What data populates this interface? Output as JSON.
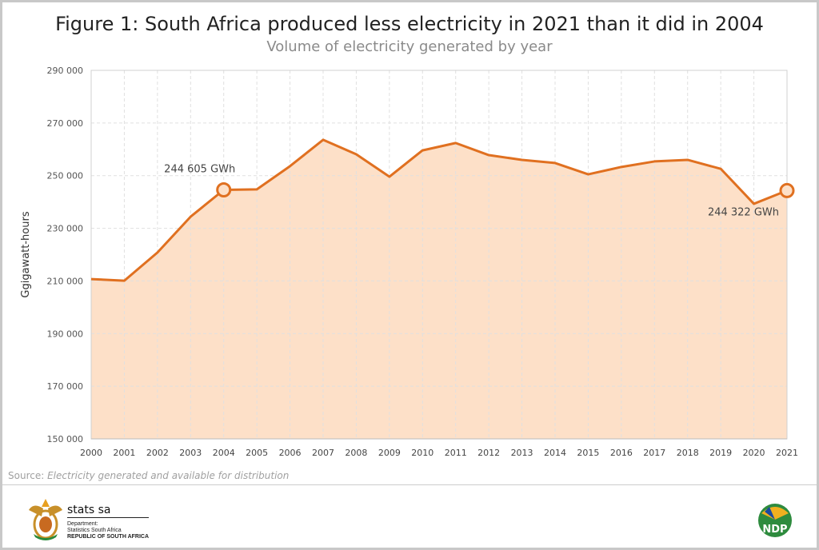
{
  "chart_data": {
    "type": "area",
    "title": "Figure 1: South Africa produced less electricity in 2021 than it did in 2004",
    "subtitle": "Volume of electricity generated by year",
    "xlabel": "",
    "ylabel": "Ggigawatt-hours",
    "ylim": [
      150000,
      290000
    ],
    "yticks": [
      "150 000",
      "170 000",
      "190 000",
      "210 000",
      "230 000",
      "250 000",
      "270 000",
      "290 000"
    ],
    "ytick_values": [
      150000,
      170000,
      190000,
      210000,
      230000,
      250000,
      270000,
      290000
    ],
    "grid": true,
    "categories": [
      "2000",
      "2001",
      "2002",
      "2003",
      "2004",
      "2005",
      "2006",
      "2007",
      "2008",
      "2009",
      "2010",
      "2011",
      "2012",
      "2013",
      "2014",
      "2015",
      "2016",
      "2017",
      "2018",
      "2019",
      "2020",
      "2021"
    ],
    "values": [
      210700,
      210100,
      220800,
      234400,
      244605,
      244800,
      253600,
      263600,
      258100,
      249600,
      259600,
      262400,
      257800,
      256000,
      254800,
      250500,
      253300,
      255400,
      256000,
      252600,
      239300,
      244322
    ],
    "annotations": [
      {
        "category": "2004",
        "text": "244 605 GWh"
      },
      {
        "category": "2021",
        "text": "244 322 GWh"
      }
    ],
    "colors": {
      "line": "#e07020",
      "fill": "#fde0c8",
      "grid": "#e0e0e0"
    }
  },
  "source": {
    "label": "Source:",
    "text": "Electricity generated and available for distribution"
  },
  "footer": {
    "logo_name": "stats sa",
    "line1": "Department:",
    "line2": "Statistics South Africa",
    "line3": "REPUBLIC OF SOUTH AFRICA",
    "ndp_logo": "NDP 2030"
  }
}
